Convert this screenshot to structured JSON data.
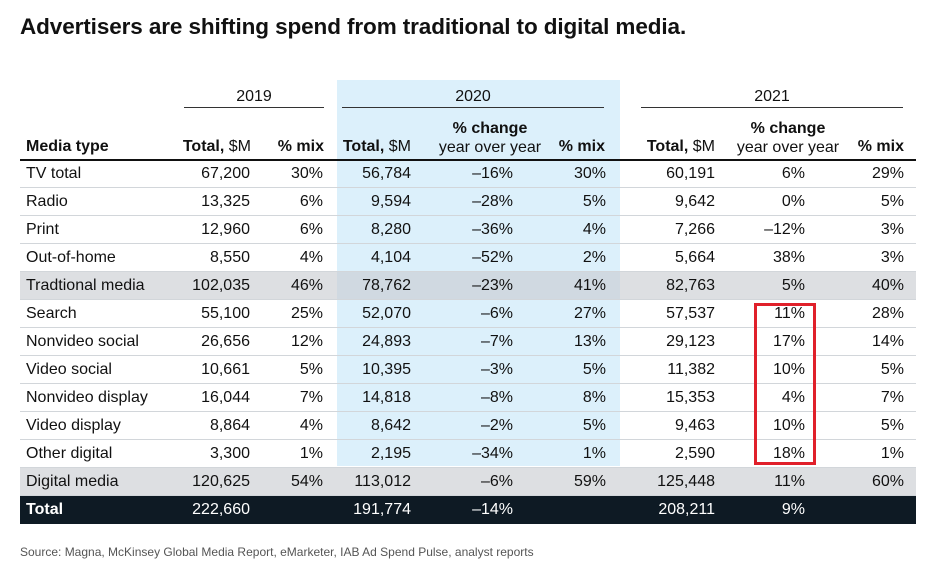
{
  "title": "Advertisers are shifting spend from traditional to digital media.",
  "source": "Source: Magna, McKinsey Global Media Report, eMarketer, IAB Ad Spend Pulse, analyst reports",
  "colors": {
    "highlight_2020": "#dcf0fb",
    "total_row": "#0e1a24",
    "subtotal_row": "#c8ccd0",
    "callout_box": "#e0202a"
  },
  "headers": {
    "years": [
      "2019",
      "2020",
      "2021"
    ],
    "media_type": "Media type",
    "total_bold": "Total,",
    "total_unit": " $M",
    "mix": "% mix",
    "change_l1": "% change",
    "change_l2": "year over year"
  },
  "chart_data": {
    "type": "table",
    "title": "Advertisers are shifting spend from traditional to digital media.",
    "columns": [
      "Media type",
      "2019 Total, $M",
      "2019 % mix",
      "2020 Total, $M",
      "2020 % change year over year",
      "2020 % mix",
      "2021 Total, $M",
      "2021 % change year over year",
      "2021 % mix"
    ],
    "rows": [
      {
        "label": "TV  total",
        "t19": "67,200",
        "m19": "30%",
        "t20": "56,784",
        "c20": "–16%",
        "m20": "30%",
        "t21": "60,191",
        "c21": "6%",
        "m21": "29%",
        "style": "normal"
      },
      {
        "label": "Radio",
        "t19": "13,325",
        "m19": "6%",
        "t20": "9,594",
        "c20": "–28%",
        "m20": "5%",
        "t21": "9,642",
        "c21": "0%",
        "m21": "5%",
        "style": "normal"
      },
      {
        "label": "Print",
        "t19": "12,960",
        "m19": "6%",
        "t20": "8,280",
        "c20": "–36%",
        "m20": "4%",
        "t21": "7,266",
        "c21": "–12%",
        "m21": "3%",
        "style": "normal"
      },
      {
        "label": "Out-of-home",
        "t19": "8,550",
        "m19": "4%",
        "t20": "4,104",
        "c20": "–52%",
        "m20": "2%",
        "t21": "5,664",
        "c21": "38%",
        "m21": "3%",
        "style": "normal"
      },
      {
        "label": "Tradtional media",
        "t19": "102,035",
        "m19": "46%",
        "t20": "78,762",
        "c20": "–23%",
        "m20": "41%",
        "t21": "82,763",
        "c21": "5%",
        "m21": "40%",
        "style": "shade"
      },
      {
        "label": "Search",
        "t19": "55,100",
        "m19": "25%",
        "t20": "52,070",
        "c20": "–6%",
        "m20": "27%",
        "t21": "57,537",
        "c21": "11%",
        "m21": "28%",
        "style": "normal"
      },
      {
        "label": "Nonvideo social",
        "t19": "26,656",
        "m19": "12%",
        "t20": "24,893",
        "c20": "–7%",
        "m20": "13%",
        "t21": "29,123",
        "c21": "17%",
        "m21": "14%",
        "style": "normal"
      },
      {
        "label": "Video social",
        "t19": "10,661",
        "m19": "5%",
        "t20": "10,395",
        "c20": "–3%",
        "m20": "5%",
        "t21": "11,382",
        "c21": "10%",
        "m21": "5%",
        "style": "normal"
      },
      {
        "label": "Nonvideo display",
        "t19": "16,044",
        "m19": "7%",
        "t20": "14,818",
        "c20": "–8%",
        "m20": "8%",
        "t21": "15,353",
        "c21": "4%",
        "m21": "7%",
        "style": "normal"
      },
      {
        "label": "Video display",
        "t19": "8,864",
        "m19": "4%",
        "t20": "8,642",
        "c20": "–2%",
        "m20": "5%",
        "t21": "9,463",
        "c21": "10%",
        "m21": "5%",
        "style": "normal"
      },
      {
        "label": "Other digital",
        "t19": "3,300",
        "m19": "1%",
        "t20": "2,195",
        "c20": "–34%",
        "m20": "1%",
        "t21": "2,590",
        "c21": "18%",
        "m21": "1%",
        "style": "normal"
      },
      {
        "label": "Digital media",
        "t19": "120,625",
        "m19": "54%",
        "t20": "113,012",
        "c20": "–6%",
        "m20": "59%",
        "t21": "125,448",
        "c21": "11%",
        "m21": "60%",
        "style": "shade"
      },
      {
        "label": "Total",
        "t19": "222,660",
        "m19": "",
        "t20": "191,774",
        "c20": "–14%",
        "m20": "",
        "t21": "208,211",
        "c21": "9%",
        "m21": "",
        "style": "total"
      }
    ]
  }
}
